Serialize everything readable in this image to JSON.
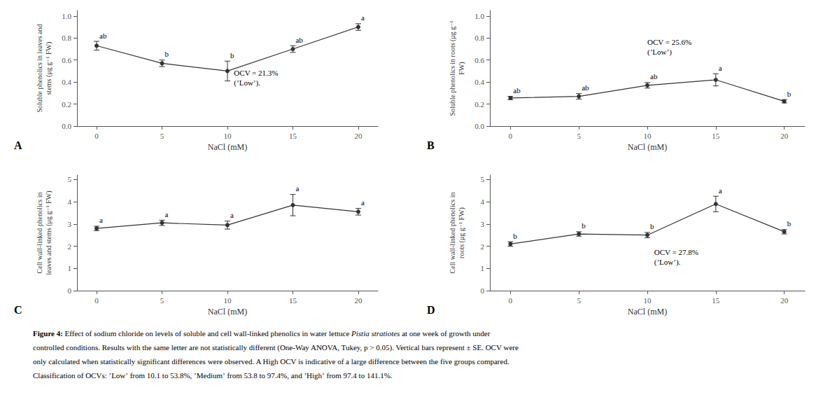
{
  "chart_data": [
    {
      "type": "line",
      "title": "A",
      "x": [
        0,
        5,
        10,
        15,
        20
      ],
      "values": [
        0.73,
        0.57,
        0.5,
        0.7,
        0.9
      ],
      "yerr": [
        0.04,
        0.03,
        0.09,
        0.03,
        0.03
      ],
      "point_labels": [
        "ab",
        "b",
        "b",
        "ab",
        "a"
      ],
      "color": "#333333",
      "marker": "circle",
      "xlabel": "NaCl (mM)",
      "ylabel": "Soluble phenolics in leaves and\nstems (μg g⁻¹ FW)",
      "xlim": [
        -1.5,
        21.5
      ],
      "xticks": [
        0,
        5,
        10,
        15,
        20
      ],
      "ylim": [
        0.0,
        1.05
      ],
      "yticks": [
        {
          "value": 0.0,
          "label": "0.0"
        },
        0.2,
        0.4,
        0.6,
        0.8,
        {
          "value": 1.0,
          "label": "1.0"
        }
      ],
      "grid": false,
      "annotations": [
        {
          "text": "OCV = 21.3%\n(ʼLowʼ).",
          "x": 10.5,
          "y": 0.44
        }
      ]
    },
    {
      "type": "line",
      "title": "B",
      "x": [
        0,
        5,
        10,
        15,
        20
      ],
      "values": [
        0.255,
        0.27,
        0.37,
        0.42,
        0.225
      ],
      "yerr": [
        0.015,
        0.025,
        0.025,
        0.055,
        0.015
      ],
      "point_labels": [
        "ab",
        "ab",
        "ab",
        "a",
        "b"
      ],
      "color": "#333333",
      "marker": "circle",
      "xlabel": "NaCl (mM)",
      "ylabel": "Soluble phenolics in roots (μg g⁻¹\nFW)",
      "xlim": [
        -1.5,
        21.5
      ],
      "xticks": [
        0,
        5,
        10,
        15,
        20
      ],
      "ylim": [
        0.0,
        1.05
      ],
      "yticks": [
        {
          "value": 0.0,
          "label": "0.0"
        },
        0.2,
        0.4,
        0.6,
        0.8,
        {
          "value": 1.0,
          "label": "1.0"
        }
      ],
      "grid": false,
      "annotations": [
        {
          "text": "OCV = 25.6%\n(ʼLowʼ)",
          "x": 10.0,
          "y": 0.72
        }
      ]
    },
    {
      "type": "line",
      "title": "C",
      "x": [
        0,
        5,
        10,
        15,
        20
      ],
      "values": [
        2.8,
        3.05,
        2.95,
        3.85,
        3.55
      ],
      "yerr": [
        0.1,
        0.12,
        0.18,
        0.48,
        0.15
      ],
      "point_labels": [
        "a",
        "a",
        "a",
        "a",
        "a"
      ],
      "color": "#333333",
      "marker": "circle",
      "xlabel": "NaCl (mM)",
      "ylabel": "Cell wall-linked phenolics in\nleaves and stems (μg g⁻¹ FW)",
      "xlim": [
        -1.5,
        21.5
      ],
      "xticks": [
        0,
        5,
        10,
        15,
        20
      ],
      "ylim": [
        0,
        5.2
      ],
      "yticks": [
        0,
        1,
        2,
        3,
        4,
        5
      ],
      "grid": false
    },
    {
      "type": "line",
      "title": "D",
      "x": [
        0,
        5,
        10,
        15,
        20
      ],
      "values": [
        2.1,
        2.55,
        2.5,
        3.9,
        2.65
      ],
      "yerr": [
        0.1,
        0.1,
        0.12,
        0.35,
        0.1
      ],
      "point_labels": [
        "b",
        "b",
        "b",
        "a",
        "b"
      ],
      "color": "#333333",
      "marker": "circle",
      "xlabel": "NaCl (mM)",
      "ylabel": "Cell wall-linked phenolics in\nroots (μg g⁻¹ FW)",
      "xlim": [
        -1.5,
        21.5
      ],
      "xticks": [
        0,
        5,
        10,
        15,
        20
      ],
      "ylim": [
        0,
        5.2
      ],
      "yticks": [
        0,
        1,
        2,
        3,
        4,
        5
      ],
      "grid": false,
      "annotations": [
        {
          "text": "OCV = 27.8%\n(ʼLowʼ).",
          "x": 10.5,
          "y": 1.5
        }
      ]
    }
  ],
  "caption": [
    [
      {
        "text": "Figure 4:",
        "style": "bold"
      },
      {
        "text": " Effect of sodium chloride on levels of soluble and cell wall-linked phenolics in water lettuce ",
        "style": "normal"
      },
      {
        "text": "Pistia stratiotes",
        "style": "italic"
      },
      {
        "text": " at one week of growth under",
        "style": "normal"
      }
    ],
    [
      {
        "text": "controlled conditions. Results with the same letter are not statistically different (One-Way ANOVA, Tukey, p > 0.05). Vertical bars represent ± SE. OCV were",
        "style": "normal"
      }
    ],
    [
      {
        "text": "only calculated when statistically significant differences were observed. A High OCV is indicative of a large difference between the five groups compared.",
        "style": "normal"
      }
    ],
    [
      {
        "text": "Classification of OCVs: ʼLowʼ from 10.1 to 53.8%, ʼMediumʼ from 53.8 to 97.4%, and ʼHighʼ from 97.4 to 141.1%.",
        "style": "normal"
      }
    ]
  ]
}
